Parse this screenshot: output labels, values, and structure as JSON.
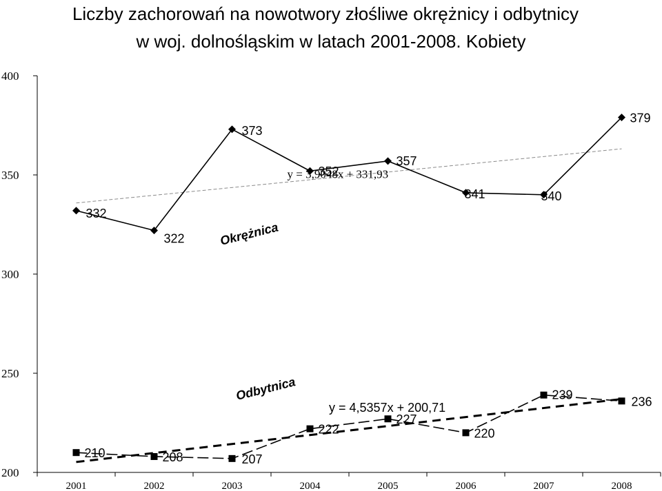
{
  "chart_data": {
    "type": "line",
    "title": "Liczby zachorowań na nowotwory złośliwe okrężnicy i odbytnicy",
    "subtitle": "w woj. dolnośląskim w latach 2001-2008. Kobiety",
    "categories": [
      "2001",
      "2002",
      "2003",
      "2004",
      "2005",
      "2006",
      "2007",
      "2008"
    ],
    "ylim": [
      200,
      400
    ],
    "yticks": [
      "200",
      "250",
      "300",
      "350",
      "400"
    ],
    "grid": false,
    "series": [
      {
        "name": "Okrężnica",
        "values": [
          332,
          322,
          373,
          352,
          357,
          341,
          340,
          379
        ],
        "marker": "diamond",
        "line": "solid",
        "trendline": {
          "equation": "y = 3,9048x + 331,93",
          "slope": 3.9048,
          "intercept": 331.93,
          "style": "thin-dashed"
        }
      },
      {
        "name": "Odbytnica",
        "values": [
          210,
          208,
          207,
          222,
          227,
          220,
          239,
          236
        ],
        "marker": "square",
        "line": "long-dashed",
        "trendline": {
          "equation": "y = 4,5357x + 200,71",
          "slope": 4.5357,
          "intercept": 200.71,
          "style": "thick-dashed"
        }
      }
    ]
  }
}
